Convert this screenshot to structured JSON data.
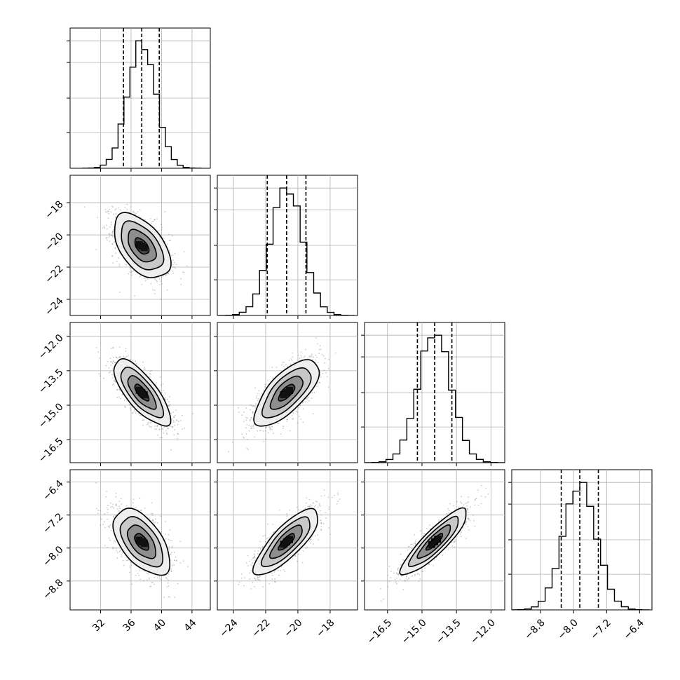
{
  "chart_data": {
    "type": "corner",
    "grid": true,
    "parameters": [
      {
        "ticks": [
          32,
          36,
          40,
          44
        ],
        "tick_labels": [
          "32",
          "36",
          "40",
          "44"
        ],
        "range": [
          28.0,
          46.4
        ],
        "mean": 37.4,
        "sigma": 1.85,
        "quantiles": [
          35.0,
          37.4,
          39.7
        ]
      },
      {
        "ticks": [
          -24,
          -22,
          -20,
          -18
        ],
        "tick_labels": [
          "−24",
          "−22",
          "−20",
          "−18"
        ],
        "range": [
          -25.0,
          -16.3
        ],
        "mean": -20.7,
        "sigma": 1.0,
        "quantiles": [
          -21.9,
          -20.7,
          -19.5
        ]
      },
      {
        "ticks": [
          -16.5,
          -15.0,
          -13.5,
          -12.0
        ],
        "tick_labels": [
          "−16.5",
          "−15.0",
          "−13.5",
          "−12.0"
        ],
        "range": [
          -17.5,
          -11.4
        ],
        "mean": -14.45,
        "sigma": 0.72,
        "quantiles": [
          -15.2,
          -14.45,
          -13.7
        ]
      },
      {
        "ticks": [
          -8.8,
          -8.0,
          -7.2,
          -6.4
        ],
        "tick_labels": [
          "−8.8",
          "−8.0",
          "−7.2",
          "−6.4"
        ],
        "range": [
          -9.5,
          -6.1
        ],
        "mean": -7.85,
        "sigma": 0.4,
        "quantiles": [
          -8.3,
          -7.85,
          -7.4
        ]
      }
    ],
    "correlations": [
      {
        "pair": [
          0,
          1
        ],
        "rho": -0.5
      },
      {
        "pair": [
          0,
          2
        ],
        "rho": -0.75
      },
      {
        "pair": [
          1,
          2
        ],
        "rho": 0.7
      },
      {
        "pair": [
          0,
          3
        ],
        "rho": -0.55
      },
      {
        "pair": [
          1,
          3
        ],
        "rho": 0.8
      },
      {
        "pair": [
          2,
          3
        ],
        "rho": 0.88
      }
    ],
    "histogram_bins": 20,
    "contour_levels_sigma": [
      0.5,
      1.0,
      1.5,
      2.0
    ]
  }
}
